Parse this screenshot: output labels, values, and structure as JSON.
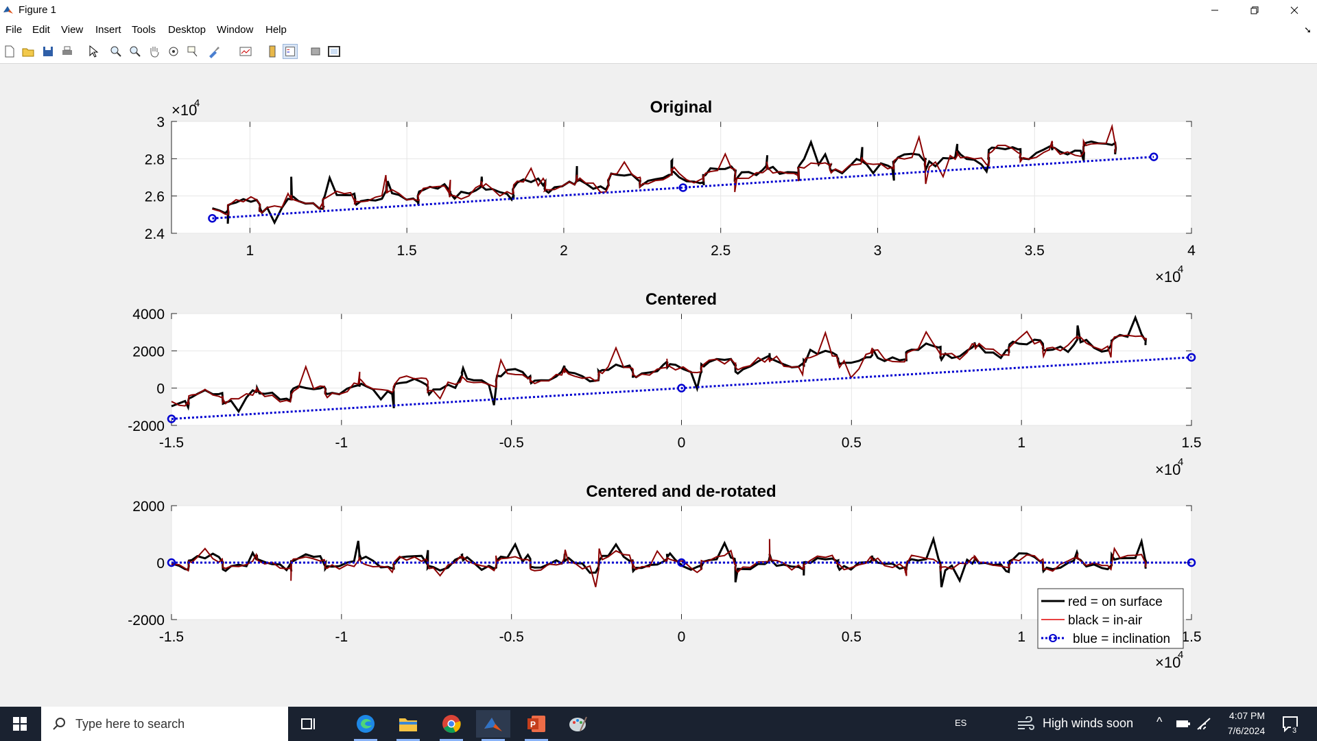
{
  "window": {
    "title": "Figure 1"
  },
  "menu": [
    "File",
    "Edit",
    "View",
    "Insert",
    "Tools",
    "Desktop",
    "Window",
    "Help"
  ],
  "toolbar": [
    "new-figure",
    "open-file",
    "save",
    "print",
    "edit-plot",
    "zoom-in",
    "zoom-out",
    "pan",
    "rotate-3d",
    "data-cursor",
    "brush",
    "link-data",
    "colorbar",
    "legend",
    "hide-plot-tools",
    "show-plot-tools"
  ],
  "plots": [
    {
      "title": "Original",
      "xticks": [
        "1",
        "1.5",
        "2",
        "2.5",
        "3",
        "3.5",
        "4"
      ],
      "yticks": [
        "3",
        "2.8",
        "2.6",
        "2.4"
      ],
      "xexp": "×10",
      "xexp_pow": "4",
      "yexp": "×10",
      "yexp_pow": "4"
    },
    {
      "title": "Centered",
      "xticks": [
        "-1.5",
        "-1",
        "-0.5",
        "0",
        "0.5",
        "1",
        "1.5"
      ],
      "yticks": [
        "4000",
        "2000",
        "0",
        "-2000"
      ],
      "xexp": "×10",
      "xexp_pow": "4"
    },
    {
      "title": "Centered and de-rotated",
      "xticks": [
        "-1.5",
        "-1",
        "-0.5",
        "0",
        "0.5",
        "1",
        "1.5"
      ],
      "yticks": [
        "2000",
        "0",
        "-2000"
      ],
      "xexp": "×10",
      "xexp_pow": "4"
    }
  ],
  "legend": {
    "items": [
      "red = on surface",
      "black = in-air",
      "blue = inclination"
    ],
    "colors": [
      "#000000",
      "#e00000",
      "#0000d0"
    ]
  },
  "chart_data": [
    {
      "type": "line",
      "title": "Original",
      "xlim": [
        7500,
        40000
      ],
      "ylim": [
        24000,
        30000
      ],
      "grid": true,
      "series": [
        {
          "name": "blue = inclination",
          "x": [
            8800,
            23800,
            38800
          ],
          "y": [
            24800,
            26450,
            28100
          ]
        }
      ]
    },
    {
      "type": "line",
      "title": "Centered",
      "xlim": [
        -15000,
        15000
      ],
      "ylim": [
        -2000,
        4000
      ],
      "grid": true,
      "series": [
        {
          "name": "blue = inclination",
          "x": [
            -15000,
            0,
            15000
          ],
          "y": [
            -1650,
            0,
            1650
          ]
        }
      ]
    },
    {
      "type": "line",
      "title": "Centered and de-rotated",
      "xlim": [
        -15000,
        15000
      ],
      "ylim": [
        -2000,
        2000
      ],
      "grid": true,
      "legend": "bottom-right",
      "series": [
        {
          "name": "blue = inclination",
          "x": [
            -15000,
            0,
            15000
          ],
          "y": [
            0,
            0,
            0
          ]
        }
      ]
    }
  ],
  "taskbar": {
    "search_placeholder": "Type here to search",
    "language": "ES",
    "weather": "High winds soon",
    "time": "4:07 PM",
    "date": "7/6/2024",
    "notifications": "3"
  }
}
